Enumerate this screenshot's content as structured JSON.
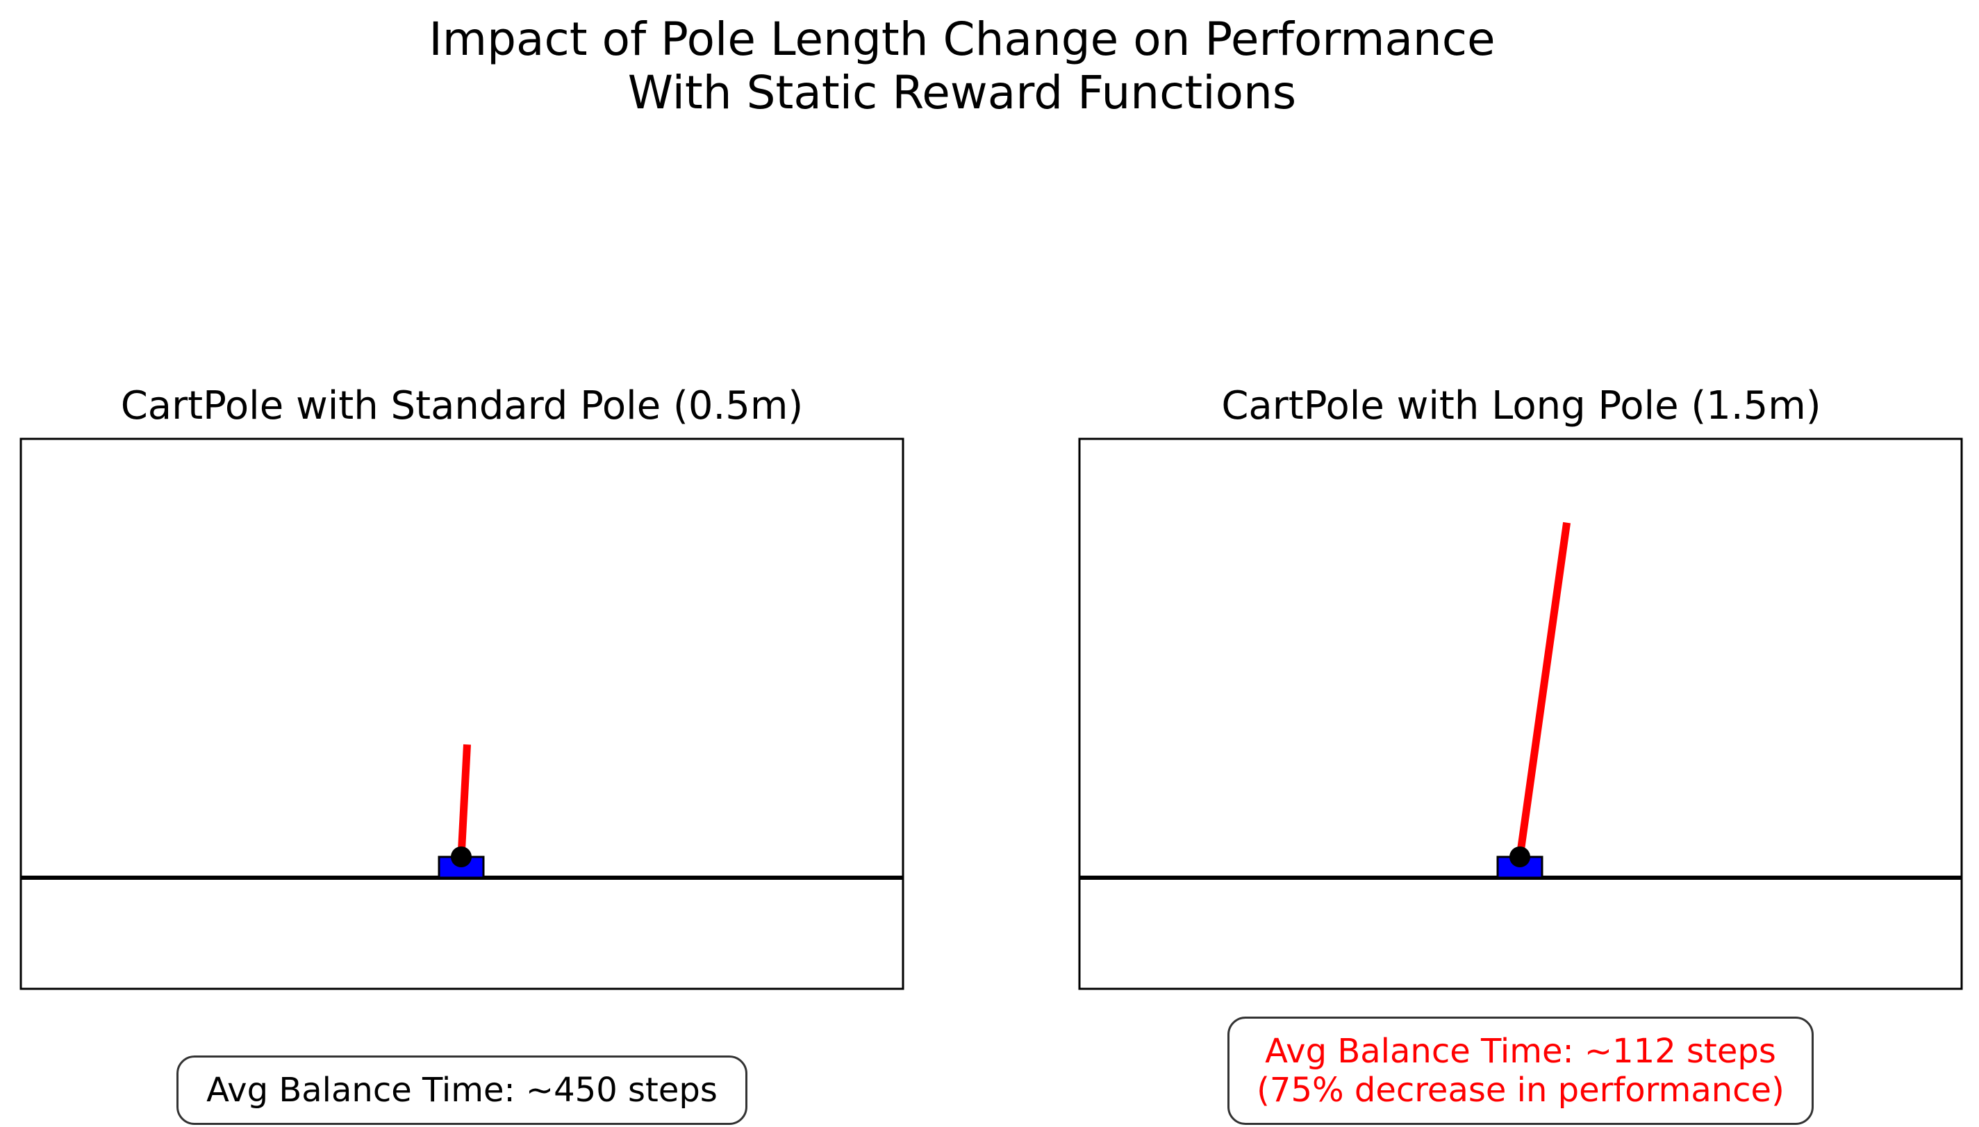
{
  "title": {
    "line1": "Impact of Pole Length Change on Performance",
    "line2": "With Static Reward Functions"
  },
  "panels": [
    {
      "id": "standard",
      "title": "CartPole with Standard Pole (0.5m)",
      "pole_length_m": 0.5,
      "pole_angle_deg": 3,
      "caption_lines": [
        "Avg Balance Time: ~450 steps"
      ],
      "caption_color": "#000000"
    },
    {
      "id": "long",
      "title": "CartPole with Long Pole (1.5m)",
      "pole_length_m": 1.5,
      "pole_angle_deg": 8,
      "caption_lines": [
        "Avg Balance Time: ~112 steps",
        "(75% decrease in performance)"
      ],
      "caption_color": "#ff0000"
    }
  ],
  "colors": {
    "cart": "#0000ff",
    "pole": "#ff0000",
    "pivot": "#000000",
    "track": "#000000",
    "frame": "#000000"
  }
}
